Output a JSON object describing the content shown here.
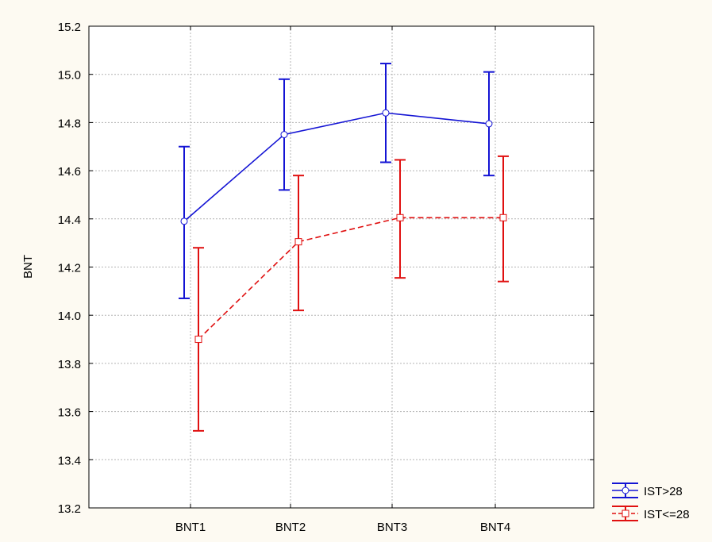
{
  "colors": {
    "background": "#fdfaf2",
    "plot_area": "#ffffff",
    "grid": "#b4b4b4",
    "series_1": "#1414d4",
    "series_2": "#e01010"
  },
  "chart_data": {
    "type": "line",
    "title": "",
    "xlabel": "",
    "ylabel": "BNT",
    "categories": [
      "BNT1",
      "BNT2",
      "BNT3",
      "BNT4"
    ],
    "ylim": [
      13.2,
      15.2
    ],
    "yticks": [
      "13.2",
      "13.4",
      "13.6",
      "13.8",
      "14.0",
      "14.2",
      "14.4",
      "14.6",
      "14.8",
      "15.0",
      "15.2"
    ],
    "grid": true,
    "legend_position": "bottom-right",
    "error_bars": true,
    "series": [
      {
        "name": "IST>28",
        "color": "#1414d4",
        "marker": "circle",
        "line_style": "solid",
        "values": [
          14.39,
          14.75,
          14.84,
          14.795
        ],
        "lower": [
          14.07,
          14.52,
          14.635,
          14.58
        ],
        "upper": [
          14.7,
          14.98,
          15.045,
          15.01
        ]
      },
      {
        "name": "IST<=28",
        "color": "#e01010",
        "marker": "square",
        "line_style": "dashed",
        "values": [
          13.9,
          14.305,
          14.405,
          14.405
        ],
        "lower": [
          13.52,
          14.02,
          14.155,
          14.14
        ],
        "upper": [
          14.28,
          14.58,
          14.645,
          14.66
        ]
      }
    ]
  }
}
